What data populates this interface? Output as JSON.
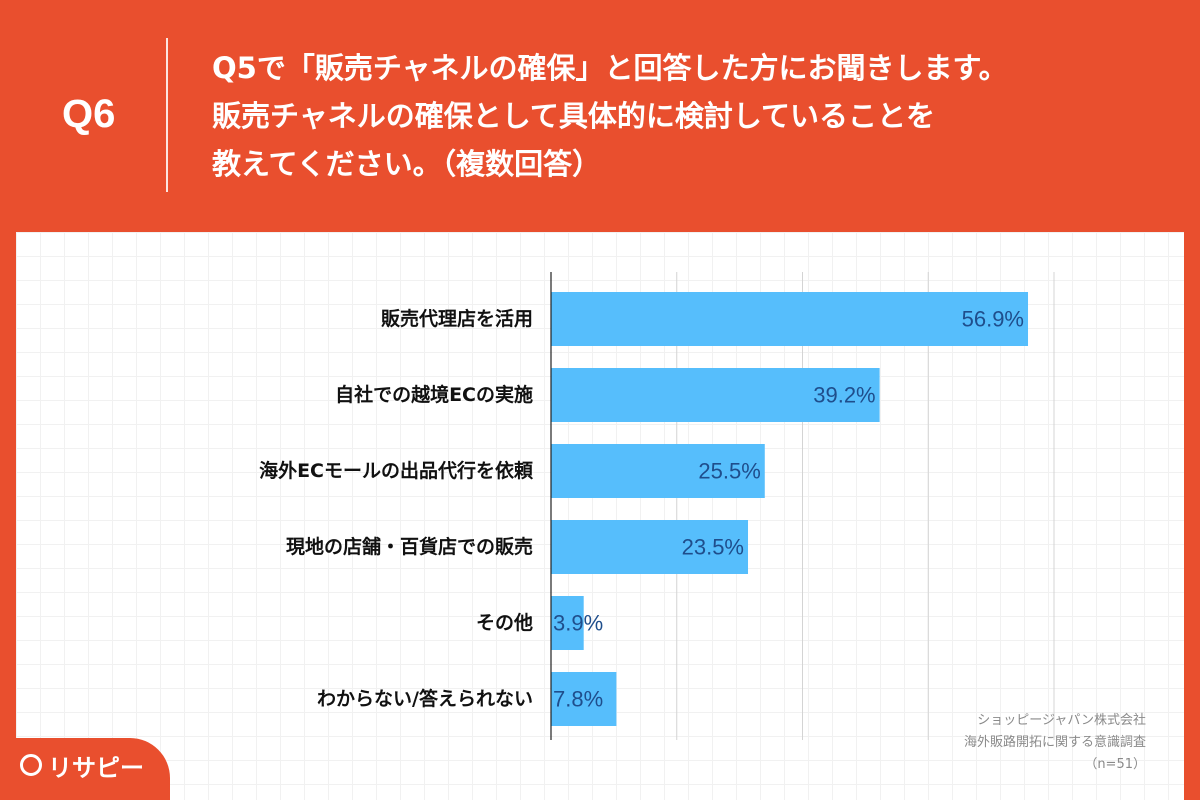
{
  "header": {
    "q_label": "Q6",
    "question_lines": [
      "Q5で「販売チャネルの確保」と回答した方にお聞きします。",
      "販売チャネルの確保として具体的に検討していることを",
      "教えてください。（複数回答）"
    ]
  },
  "chart_data": {
    "type": "bar",
    "orientation": "horizontal",
    "categories": [
      "販売代理店を活用",
      "自社での越境ECの実施",
      "海外ECモールの出品代行を依頼",
      "現地の店舗・百貨店での販売",
      "その他",
      "わからない/答えられない"
    ],
    "values": [
      56.9,
      39.2,
      25.5,
      23.5,
      3.9,
      7.8
    ],
    "value_labels": [
      "56.9%",
      "39.2%",
      "25.5%",
      "23.5%",
      "3.9%",
      "7.8%"
    ],
    "unit": "%",
    "xlim": [
      0,
      60
    ],
    "x_gridlines": [
      0,
      15,
      30,
      45,
      60
    ],
    "bar_color": "#56befc",
    "value_label_color": "#1f4e8c"
  },
  "source": {
    "lines": [
      "ショッピージャパン株式会社",
      "海外販路開拓に関する意識調査",
      "（n=51）"
    ]
  },
  "brand": {
    "name": "リサピー",
    "icon": "pin-icon"
  },
  "colors": {
    "background": "#e94f2e",
    "panel": "#ffffff"
  }
}
